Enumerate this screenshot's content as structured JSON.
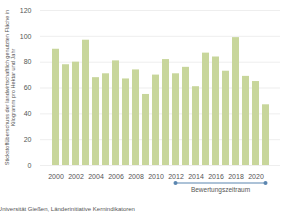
{
  "chart_data": {
    "type": "bar",
    "y_label": "Stickstoffüberschuss der landwirtschaftlich genutzten Fläche in Kilogramm pro Hektar und Jahr",
    "x": [
      2000,
      2001,
      2002,
      2003,
      2004,
      2005,
      2006,
      2007,
      2008,
      2009,
      2010,
      2011,
      2012,
      2013,
      2014,
      2015,
      2016,
      2017,
      2018,
      2019,
      2020,
      2021
    ],
    "values": [
      90,
      78,
      80,
      97,
      68,
      71,
      81,
      67,
      74,
      55,
      70,
      82,
      71,
      76,
      61,
      87,
      84,
      73,
      99,
      69,
      65,
      47
    ],
    "color": "#c8d69b",
    "xticks": [
      2000,
      2002,
      2004,
      2006,
      2008,
      2010,
      2012,
      2014,
      2016,
      2018,
      2020
    ],
    "ylim": [
      0,
      120
    ],
    "yticks": [
      0,
      20,
      40,
      60,
      80,
      100,
      120
    ],
    "grid": true,
    "annotations": [
      {
        "text": "Bewertungszeitraum",
        "x_start": 2012,
        "x_end": 2021,
        "color": "#5b86b0"
      }
    ],
    "source": "Datenquelle: Justus-Liebig-Universität Gießen, Länderinitiative Kernindikatoren"
  }
}
